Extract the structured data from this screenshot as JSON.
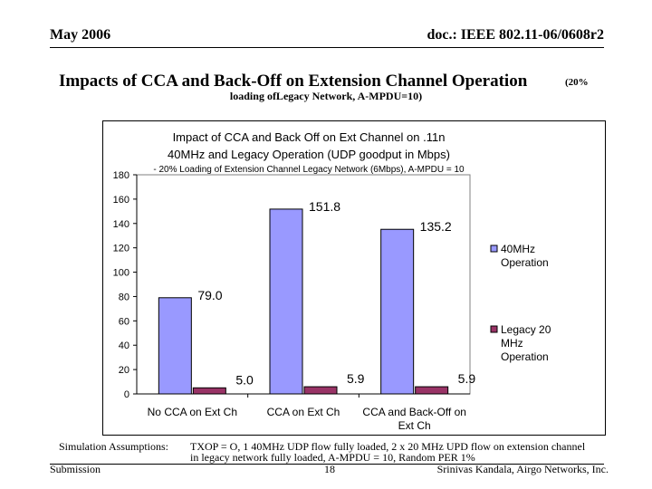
{
  "header": {
    "date": "May 2006",
    "doc": "doc.: IEEE 802.11-06/0608r2"
  },
  "slide": {
    "title": "Impacts of CCA and Back-Off on Extension Channel Operation",
    "title_tail": "(20%",
    "title_line2": "loading ofLegacy Network, A-MPDU=10)"
  },
  "chart_data": {
    "type": "bar",
    "title": [
      "Impact of CCA and Back Off on Ext Channel on .11n",
      "40MHz and Legacy Operation (UDP goodput in Mbps)"
    ],
    "subtitle": "- 20% Loading of Extension Channel Legacy Network (6Mbps), A-MPDU = 10",
    "categories": [
      [
        "No CCA on Ext Ch"
      ],
      [
        "CCA on Ext Ch"
      ],
      [
        "CCA and Back-Off on",
        "Ext Ch"
      ]
    ],
    "series": [
      {
        "name": "40MHz Operation",
        "legend_lines": [
          "40MHz",
          "Operation"
        ],
        "color": "#9999ff",
        "values": [
          79.0,
          151.8,
          135.2
        ],
        "labels": [
          "79.0",
          "151.8",
          "135.2"
        ]
      },
      {
        "name": "Legacy 20 MHz Operation",
        "legend_lines": [
          "Legacy 20",
          "MHz",
          "Operation"
        ],
        "color": "#993366",
        "values": [
          5.0,
          5.9,
          5.9
        ],
        "labels": [
          "5.0",
          "5.9",
          "5.9"
        ]
      }
    ],
    "yticks": [
      0,
      20,
      40,
      60,
      80,
      100,
      120,
      140,
      160,
      180
    ],
    "ylim": [
      0,
      180
    ],
    "xlabel": "",
    "ylabel": "",
    "grid": false,
    "legend": "right"
  },
  "footer": {
    "assumptions_label": "Simulation Assumptions:",
    "assumptions_line1": "TXOP = O, 1 40MHz UDP flow fully loaded, 2 x 20 MHz UPD flow on extension channel",
    "assumptions_line2": "in legacy network fully loaded, A-MPDU = 10, Random PER 1%",
    "submission": "Submission",
    "page": "18",
    "author": "Srinivas Kandala, Airgo Networks, Inc."
  }
}
